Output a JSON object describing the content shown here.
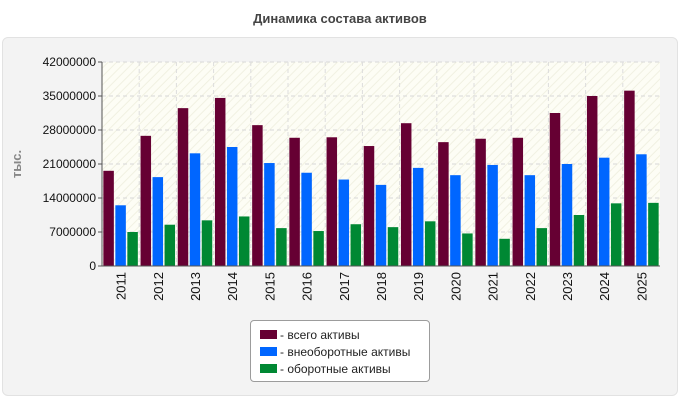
{
  "chart_data": {
    "type": "bar",
    "title": "Динамика состава активов",
    "ylabel": "тыс.",
    "xlabel": "",
    "ylim": [
      0,
      42000000
    ],
    "yticks": [
      0,
      7000000,
      14000000,
      21000000,
      28000000,
      35000000,
      42000000
    ],
    "grid": true,
    "legend_placement": "bottom-center",
    "categories": [
      "2011",
      "2012",
      "2013",
      "2014",
      "2015",
      "2016",
      "2017",
      "2018",
      "2019",
      "2020",
      "2021",
      "2022",
      "2023",
      "2024",
      "2025"
    ],
    "series": [
      {
        "name": "- всего активы",
        "color": "#660033",
        "values": [
          19600000,
          26800000,
          32500000,
          34600000,
          29000000,
          26400000,
          26500000,
          24700000,
          29400000,
          25500000,
          26200000,
          26400000,
          31500000,
          35000000,
          36100000
        ]
      },
      {
        "name": "- внеоборотные активы",
        "color": "#0066ff",
        "values": [
          12500000,
          18300000,
          23200000,
          24500000,
          21200000,
          19200000,
          17800000,
          16700000,
          20200000,
          18700000,
          20800000,
          18700000,
          21000000,
          22300000,
          23000000
        ]
      },
      {
        "name": "- оборотные активы",
        "color": "#008833",
        "values": [
          7000000,
          8500000,
          9400000,
          10200000,
          7800000,
          7200000,
          8600000,
          8000000,
          9200000,
          6700000,
          5600000,
          7800000,
          10500000,
          12900000,
          13000000
        ]
      }
    ]
  }
}
